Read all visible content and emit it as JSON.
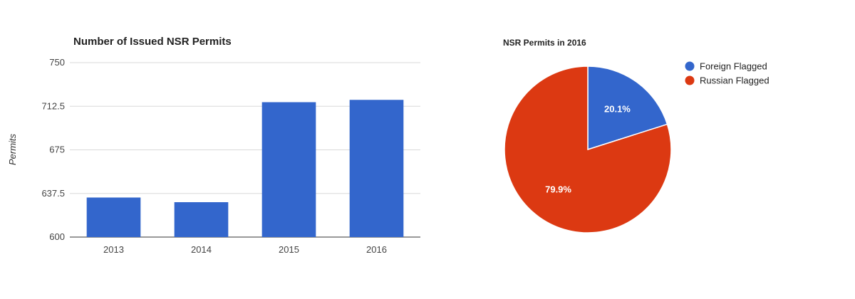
{
  "chart_data": [
    {
      "type": "bar",
      "title": "Number of Issued NSR Permits",
      "xlabel": "",
      "ylabel": "Permits",
      "categories": [
        "2013",
        "2014",
        "2015",
        "2016"
      ],
      "values": [
        634,
        630,
        716,
        718
      ],
      "ylim": [
        600,
        750
      ],
      "yticks": [
        600,
        637.5,
        675,
        712.5,
        750
      ],
      "ytick_labels": [
        "600",
        "637.5",
        "675",
        "712.5",
        "750"
      ],
      "grid": true,
      "colors": {
        "bar": "#3366cc",
        "grid": "#d8d8d8"
      }
    },
    {
      "type": "pie",
      "title": "NSR Permits in 2016",
      "legend_position": "right",
      "slices": [
        {
          "label": "Foreign Flagged",
          "value": 20.1,
          "display": "20.1%",
          "color": "#3366cc"
        },
        {
          "label": "Russian Flagged",
          "value": 79.9,
          "display": "79.9%",
          "color": "#dc3912"
        }
      ]
    }
  ]
}
